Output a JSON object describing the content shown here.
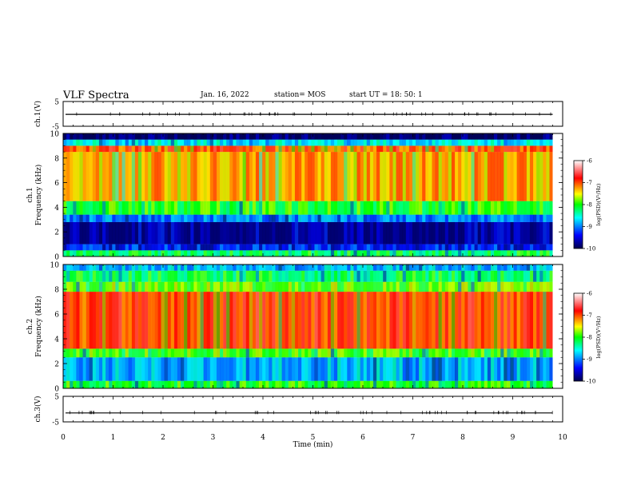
{
  "header": {
    "title": "VLF Spectra",
    "date": "Jan. 16, 2022",
    "station": "station= MOS",
    "start": "start  UT  =   18: 50: 1"
  },
  "chart_data": [
    {
      "type": "line",
      "panel": "ch1-voltage",
      "ylabel": "ch.1(V)",
      "ylim": [
        -5,
        5
      ],
      "yticks": [
        "5",
        "-5"
      ],
      "x": [
        0,
        9.8
      ],
      "values": [
        -0.2,
        -0.2
      ]
    },
    {
      "type": "heatmap",
      "panel": "ch1-spectrogram",
      "ylabel": "ch.1\nFrequency (kHz)",
      "ylim": [
        0,
        10
      ],
      "yticks": [
        "0",
        "2",
        "4",
        "6",
        "8",
        "10"
      ],
      "xlim": [
        0,
        9.8
      ],
      "bands": [
        {
          "from": 0.0,
          "to": 0.5,
          "level": -8.2
        },
        {
          "from": 0.5,
          "to": 1.0,
          "level": -9.3
        },
        {
          "from": 1.0,
          "to": 2.8,
          "level": -9.7
        },
        {
          "from": 2.8,
          "to": 3.4,
          "level": -9.0
        },
        {
          "from": 3.4,
          "to": 4.5,
          "level": -8.0
        },
        {
          "from": 4.5,
          "to": 8.5,
          "level": -7.3
        },
        {
          "from": 8.5,
          "to": 9.0,
          "level": -7.0
        },
        {
          "from": 9.0,
          "to": 9.5,
          "level": -8.6
        },
        {
          "from": 9.5,
          "to": 10.0,
          "level": -9.9
        }
      ],
      "colorbar": {
        "label": "log(PSD)(V²/Hz)",
        "min": -10,
        "max": -6,
        "ticks": [
          "-6",
          "-7",
          "-8",
          "-9",
          "-10"
        ]
      }
    },
    {
      "type": "heatmap",
      "panel": "ch2-spectrogram",
      "ylabel": "ch.2\nFrequency (kHz)",
      "ylim": [
        0,
        10
      ],
      "yticks": [
        "0",
        "2",
        "4",
        "6",
        "8",
        "10"
      ],
      "xlim": [
        0,
        9.8
      ],
      "bands": [
        {
          "from": 0.0,
          "to": 0.6,
          "level": -8.0
        },
        {
          "from": 0.6,
          "to": 2.5,
          "level": -8.8
        },
        {
          "from": 2.5,
          "to": 3.2,
          "level": -7.9
        },
        {
          "from": 3.2,
          "to": 7.8,
          "level": -6.9
        },
        {
          "from": 7.8,
          "to": 8.6,
          "level": -7.8
        },
        {
          "from": 8.6,
          "to": 9.5,
          "level": -8.2
        },
        {
          "from": 9.5,
          "to": 10.0,
          "level": -8.8
        }
      ],
      "colorbar": {
        "label": "log(PSD)(V²/Hz)",
        "min": -10,
        "max": -6,
        "ticks": [
          "-6",
          "-7",
          "-8",
          "-9",
          "-10"
        ]
      }
    },
    {
      "type": "line",
      "panel": "ch3-voltage",
      "ylabel": "ch.3(V)",
      "ylim": [
        -5,
        5
      ],
      "yticks": [
        "5",
        "-5"
      ],
      "x": [
        0,
        9.8
      ],
      "values": [
        -1.5,
        -1.5
      ]
    }
  ],
  "xaxis": {
    "label": "Time (min)",
    "xlim": [
      0,
      10
    ],
    "ticks": [
      "0",
      "1",
      "2",
      "3",
      "4",
      "5",
      "6",
      "7",
      "8",
      "9",
      "10"
    ]
  },
  "colors": {
    "colormap": [
      "#00004a",
      "#0000ff",
      "#00ffff",
      "#00ff00",
      "#ffff00",
      "#ff0000",
      "#ffffff"
    ]
  }
}
